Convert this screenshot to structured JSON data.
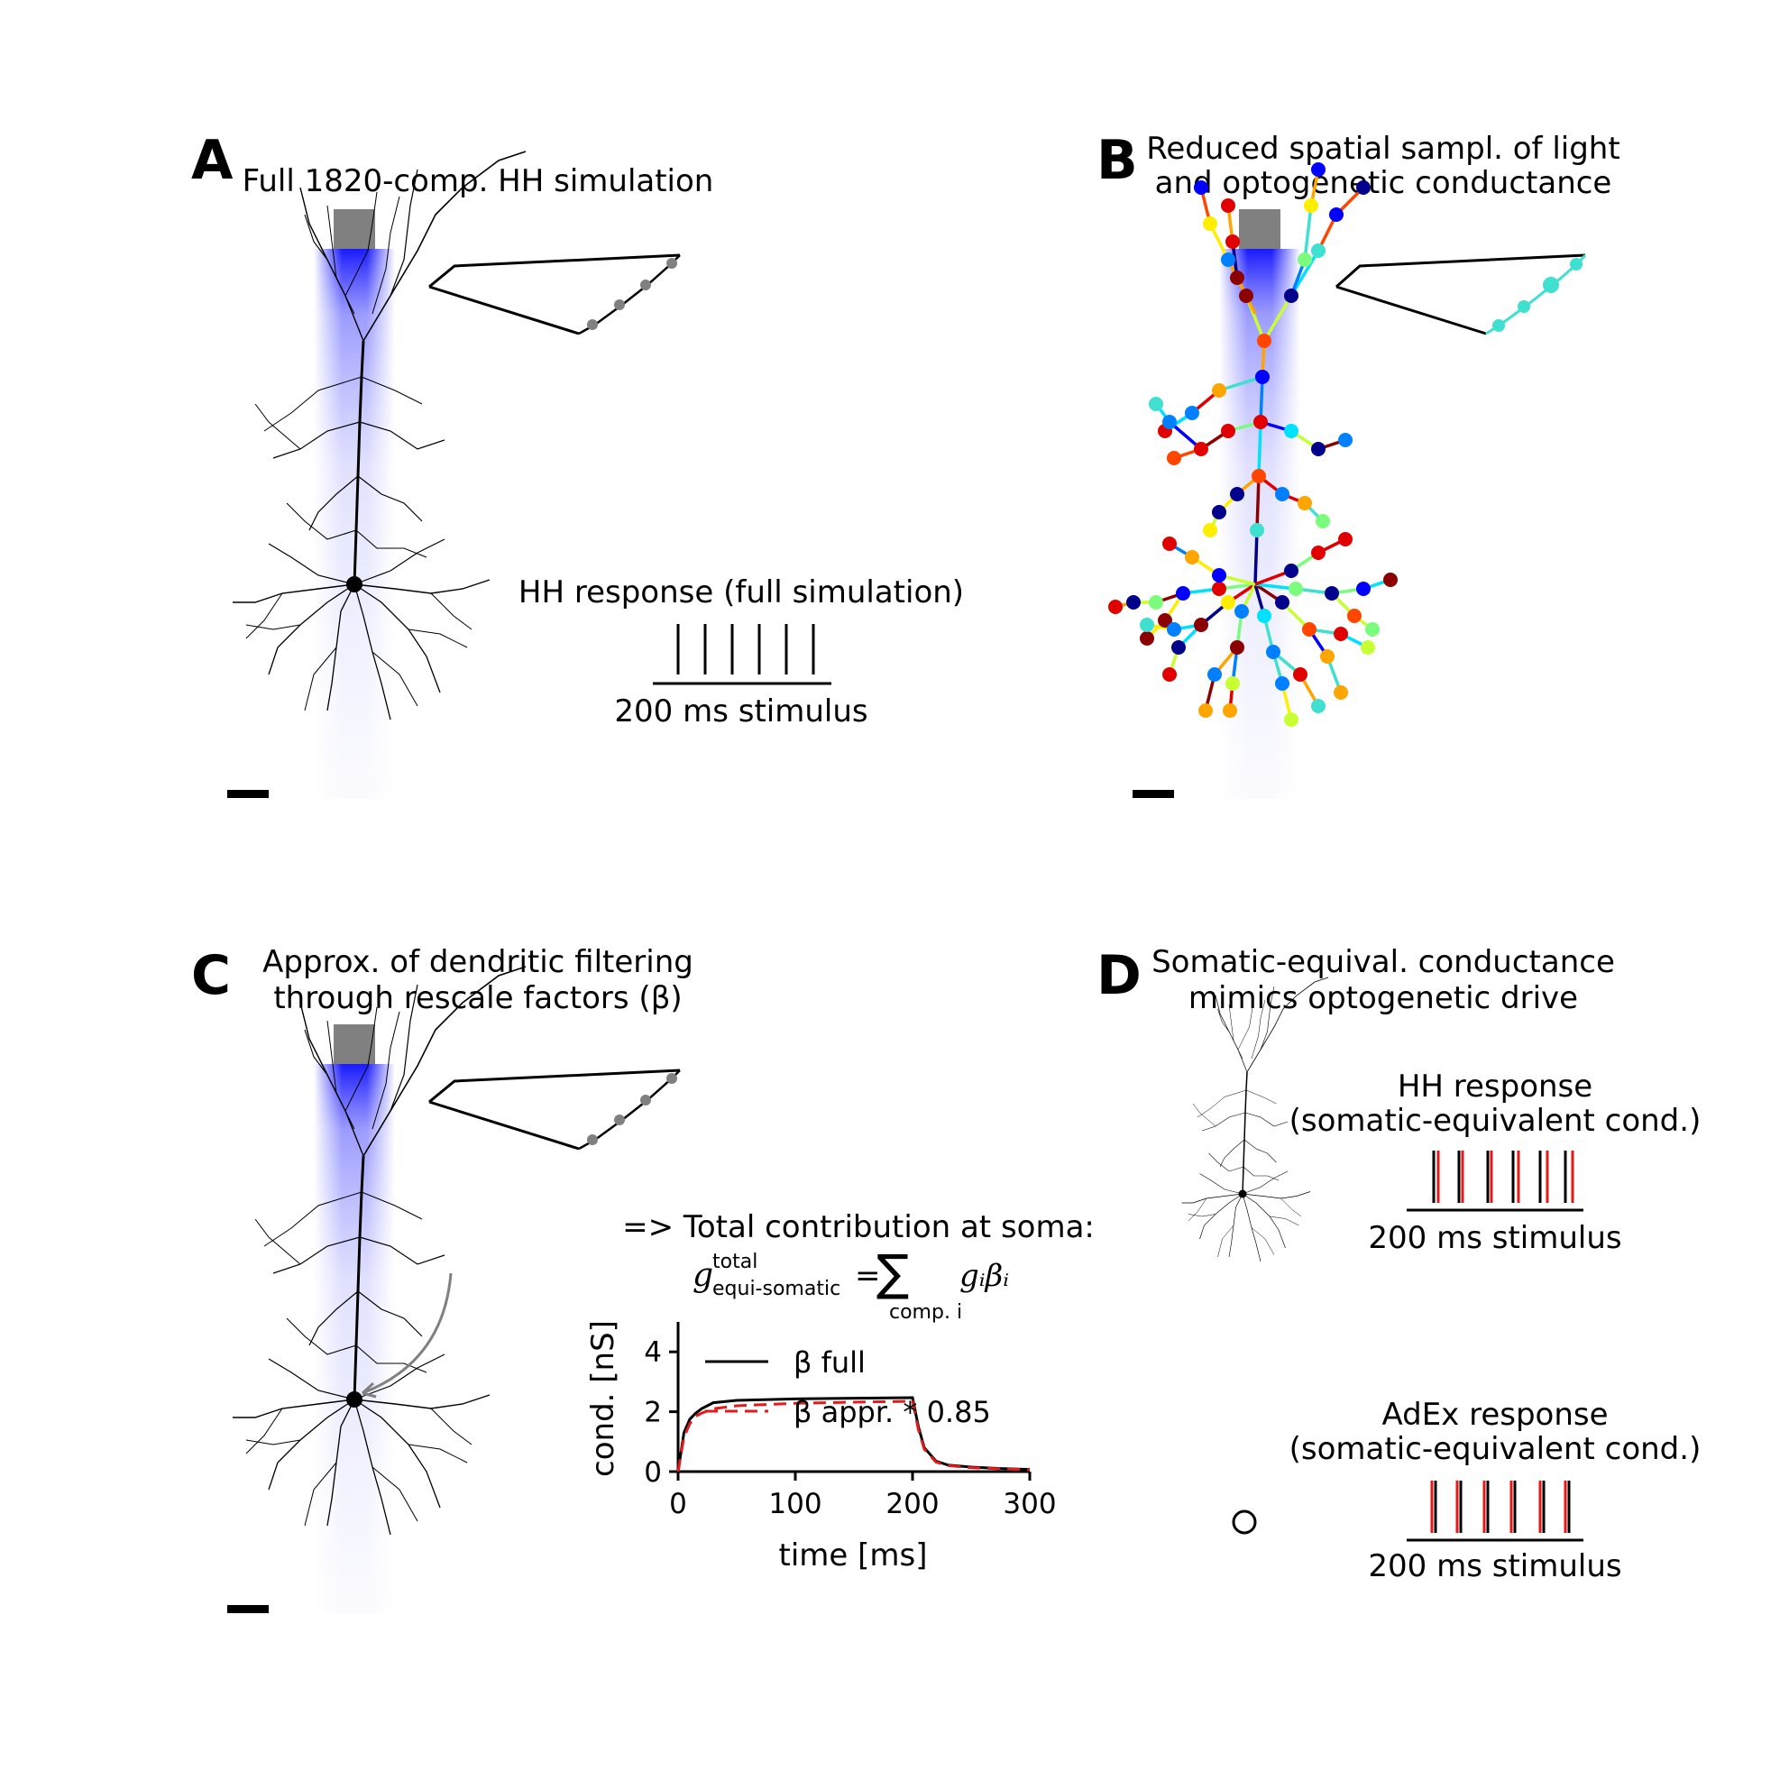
{
  "panels": {
    "A": {
      "label": "A",
      "title": "Full 1820-comp. HH simulation",
      "response_title": "HH response (full simulation)",
      "stimulus_label": "200 ms stimulus",
      "spike_count": 6
    },
    "B": {
      "label": "B",
      "title_line1": "Reduced spatial sampl. of light",
      "title_line2": "and optogenetic conductance"
    },
    "C": {
      "label": "C",
      "title_line1": "Approx. of dendritic filtering",
      "title_line2": "through rescale factors (β)",
      "formula_heading": "=> Total contribution at soma:",
      "formula": {
        "g_symbol": "g",
        "superscript": "total",
        "subscript": "equi-somatic",
        "equals": "=",
        "sum_symbol": "∑",
        "sum_index": "comp. i",
        "term": "gᵢβᵢ"
      }
    },
    "D": {
      "label": "D",
      "title_line1": "Somatic-equival. conductance",
      "title_line2": "mimics optogenetic drive",
      "hh_title_line1": "HH response",
      "hh_title_line2": "(somatic-equivalent cond.)",
      "hh_stimulus_label": "200 ms stimulus",
      "adex_title_line1": "AdEx response",
      "adex_title_line2": "(somatic-equivalent cond.)",
      "adex_stimulus_label": "200 ms stimulus"
    }
  },
  "chart_data": {
    "type": "line",
    "xlabel": "time [ms]",
    "ylabel": "cond. [nS]",
    "xlim": [
      0,
      300
    ],
    "ylim": [
      0,
      5
    ],
    "xticks": [
      0,
      100,
      200,
      300
    ],
    "yticks": [
      0,
      2,
      4
    ],
    "legend_position": "top-right",
    "series": [
      {
        "name": "β full",
        "color": "#000000",
        "style": "solid",
        "x": [
          0,
          5,
          10,
          15,
          20,
          30,
          50,
          100,
          150,
          200,
          205,
          210,
          220,
          230,
          250,
          275,
          300
        ],
        "y": [
          0,
          1.3,
          1.75,
          1.95,
          2.1,
          2.3,
          2.38,
          2.43,
          2.45,
          2.47,
          1.5,
          0.8,
          0.35,
          0.22,
          0.15,
          0.1,
          0.07
        ]
      },
      {
        "name": "β appr. * 0.85",
        "color": "#e31a1c",
        "style": "dashed",
        "x": [
          0,
          5,
          10,
          15,
          20,
          30,
          50,
          100,
          150,
          200,
          205,
          210,
          220,
          230,
          250,
          275,
          300
        ],
        "y": [
          0,
          1.15,
          1.6,
          1.85,
          1.95,
          2.1,
          2.2,
          2.28,
          2.32,
          2.35,
          1.4,
          0.75,
          0.32,
          0.2,
          0.13,
          0.09,
          0.06
        ]
      }
    ]
  },
  "colors": {
    "light_source": "#808080",
    "light_beam": "#1a1aff",
    "neuron": "#000000",
    "compartment_dot": "#808080",
    "spike_black": "#000000",
    "spike_red": "#e31a1c"
  }
}
